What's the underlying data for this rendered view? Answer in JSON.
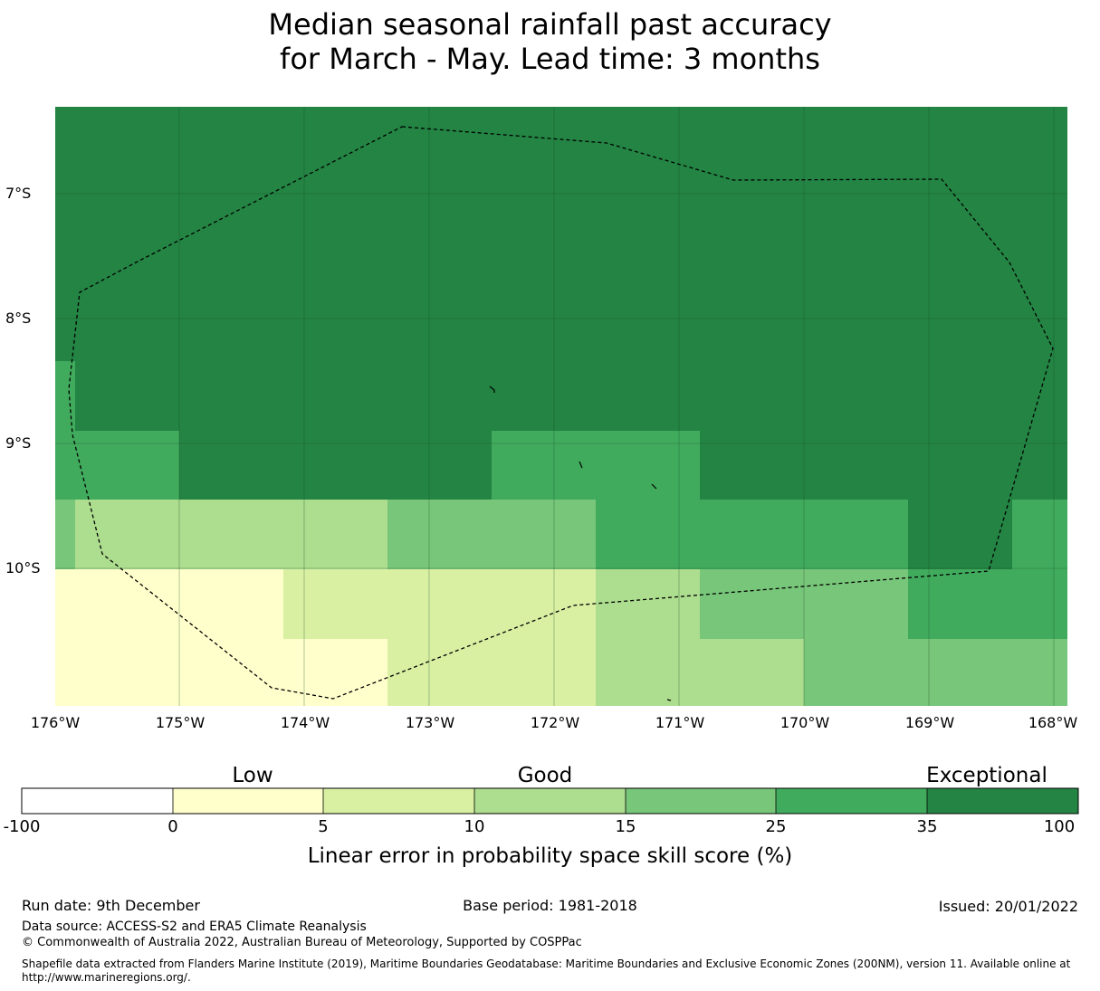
{
  "title": {
    "line1": "Median seasonal rainfall past accuracy",
    "line2": "for March - May. Lead time: 3 months"
  },
  "map": {
    "lat_labels": [
      "7°S",
      "8°S",
      "9°S",
      "10°S"
    ],
    "lon_labels": [
      "176°W",
      "175°W",
      "174°W",
      "173°W",
      "172°W",
      "171°W",
      "170°W",
      "169°W",
      "168°W"
    ],
    "boundary_style": "dashed black"
  },
  "colorbar": {
    "categories": [
      "Low",
      "Good",
      "Exceptional"
    ],
    "ticks": [
      "-100",
      "0",
      "5",
      "10",
      "15",
      "25",
      "35",
      "100"
    ],
    "colors": [
      "#ffffff",
      "#ffffcc",
      "#d9f0a3",
      "#addd8e",
      "#78c679",
      "#41ab5d",
      "#238443"
    ],
    "label": "Linear error in probability space skill score (%)"
  },
  "footer": {
    "run_date": "Run date: 9th December",
    "base_period": "Base period: 1981-2018",
    "issued": "Issued: 20/01/2022",
    "data_source": "Data source: ACCESS-S2 and ERA5 Climate Reanalysis",
    "copyright": "© Commonwealth of Australia 2022, Australian Bureau of Meteorology, Supported by COSPPac",
    "shapefile_line1": "Shapefile data extracted from Flanders Marine Institute (2019), Maritime Boundaries Geodatabase: Maritime Boundaries and Exclusive Economic Zones (200NM), version 11. Available online at",
    "shapefile_line2": "http://www.marineregions.org/."
  }
}
